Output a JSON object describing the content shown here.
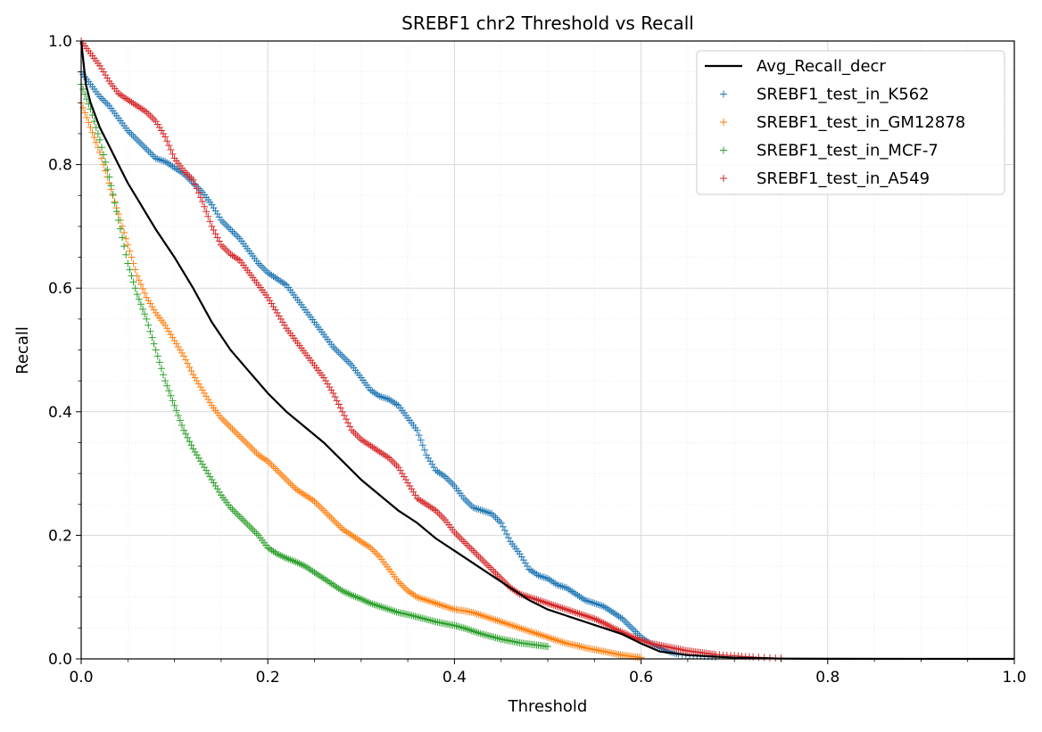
{
  "chart_data": {
    "type": "scatter",
    "title": "SREBF1 chr2 Threshold vs Recall",
    "xlabel": "Threshold",
    "ylabel": "Recall",
    "xlim": [
      0.0,
      1.0
    ],
    "ylim": [
      0.0,
      1.0
    ],
    "xticks": [
      "0.0",
      "0.2",
      "0.4",
      "0.6",
      "0.8",
      "1.0"
    ],
    "yticks": [
      "0.0",
      "0.2",
      "0.4",
      "0.6",
      "0.8",
      "1.0"
    ],
    "grid": true,
    "minor_grid": true,
    "legend_position": "top-right",
    "line": {
      "name": "Avg_Recall_decr",
      "color": "#000000",
      "points": [
        [
          0.0,
          1.0
        ],
        [
          0.005,
          0.93
        ],
        [
          0.01,
          0.9
        ],
        [
          0.02,
          0.86
        ],
        [
          0.03,
          0.83
        ],
        [
          0.04,
          0.8
        ],
        [
          0.05,
          0.77
        ],
        [
          0.06,
          0.745
        ],
        [
          0.07,
          0.72
        ],
        [
          0.08,
          0.695
        ],
        [
          0.1,
          0.65
        ],
        [
          0.12,
          0.6
        ],
        [
          0.14,
          0.545
        ],
        [
          0.16,
          0.5
        ],
        [
          0.18,
          0.465
        ],
        [
          0.2,
          0.43
        ],
        [
          0.22,
          0.4
        ],
        [
          0.24,
          0.375
        ],
        [
          0.26,
          0.35
        ],
        [
          0.28,
          0.32
        ],
        [
          0.3,
          0.29
        ],
        [
          0.32,
          0.265
        ],
        [
          0.34,
          0.24
        ],
        [
          0.36,
          0.22
        ],
        [
          0.38,
          0.195
        ],
        [
          0.4,
          0.175
        ],
        [
          0.42,
          0.155
        ],
        [
          0.44,
          0.135
        ],
        [
          0.46,
          0.115
        ],
        [
          0.48,
          0.095
        ],
        [
          0.5,
          0.08
        ],
        [
          0.52,
          0.07
        ],
        [
          0.54,
          0.06
        ],
        [
          0.56,
          0.05
        ],
        [
          0.58,
          0.04
        ],
        [
          0.6,
          0.025
        ],
        [
          0.62,
          0.012
        ],
        [
          0.65,
          0.006
        ],
        [
          0.7,
          0.002
        ],
        [
          0.75,
          0.0005
        ],
        [
          0.8,
          0.0002
        ],
        [
          1.0,
          0.0
        ]
      ]
    },
    "series": [
      {
        "name": "SREBF1_test_in_K562",
        "color": "#1f77b4",
        "points": [
          [
            0.0,
            0.95
          ],
          [
            0.01,
            0.93
          ],
          [
            0.02,
            0.91
          ],
          [
            0.03,
            0.895
          ],
          [
            0.04,
            0.875
          ],
          [
            0.05,
            0.855
          ],
          [
            0.06,
            0.84
          ],
          [
            0.07,
            0.825
          ],
          [
            0.08,
            0.81
          ],
          [
            0.09,
            0.805
          ],
          [
            0.1,
            0.795
          ],
          [
            0.11,
            0.785
          ],
          [
            0.12,
            0.77
          ],
          [
            0.13,
            0.755
          ],
          [
            0.14,
            0.735
          ],
          [
            0.15,
            0.71
          ],
          [
            0.16,
            0.695
          ],
          [
            0.17,
            0.68
          ],
          [
            0.18,
            0.66
          ],
          [
            0.19,
            0.64
          ],
          [
            0.2,
            0.625
          ],
          [
            0.21,
            0.615
          ],
          [
            0.22,
            0.605
          ],
          [
            0.23,
            0.585
          ],
          [
            0.24,
            0.565
          ],
          [
            0.25,
            0.545
          ],
          [
            0.26,
            0.525
          ],
          [
            0.27,
            0.505
          ],
          [
            0.28,
            0.49
          ],
          [
            0.29,
            0.475
          ],
          [
            0.3,
            0.455
          ],
          [
            0.31,
            0.435
          ],
          [
            0.32,
            0.425
          ],
          [
            0.33,
            0.42
          ],
          [
            0.34,
            0.41
          ],
          [
            0.35,
            0.39
          ],
          [
            0.36,
            0.37
          ],
          [
            0.37,
            0.33
          ],
          [
            0.38,
            0.305
          ],
          [
            0.39,
            0.295
          ],
          [
            0.4,
            0.28
          ],
          [
            0.41,
            0.26
          ],
          [
            0.42,
            0.245
          ],
          [
            0.43,
            0.24
          ],
          [
            0.44,
            0.235
          ],
          [
            0.45,
            0.22
          ],
          [
            0.46,
            0.19
          ],
          [
            0.47,
            0.17
          ],
          [
            0.48,
            0.145
          ],
          [
            0.49,
            0.135
          ],
          [
            0.5,
            0.13
          ],
          [
            0.51,
            0.12
          ],
          [
            0.52,
            0.115
          ],
          [
            0.53,
            0.105
          ],
          [
            0.54,
            0.095
          ],
          [
            0.55,
            0.09
          ],
          [
            0.56,
            0.085
          ],
          [
            0.57,
            0.075
          ],
          [
            0.58,
            0.065
          ],
          [
            0.59,
            0.05
          ],
          [
            0.6,
            0.035
          ],
          [
            0.61,
            0.025
          ],
          [
            0.62,
            0.018
          ],
          [
            0.63,
            0.012
          ],
          [
            0.64,
            0.008
          ],
          [
            0.66,
            0.005
          ],
          [
            0.68,
            0.003
          ]
        ]
      },
      {
        "name": "SREBF1_test_in_GM12878",
        "color": "#ff7f0e",
        "points": [
          [
            0.0,
            0.9
          ],
          [
            0.01,
            0.86
          ],
          [
            0.02,
            0.82
          ],
          [
            0.03,
            0.77
          ],
          [
            0.04,
            0.72
          ],
          [
            0.05,
            0.67
          ],
          [
            0.06,
            0.62
          ],
          [
            0.07,
            0.585
          ],
          [
            0.08,
            0.56
          ],
          [
            0.09,
            0.54
          ],
          [
            0.1,
            0.515
          ],
          [
            0.11,
            0.49
          ],
          [
            0.12,
            0.46
          ],
          [
            0.13,
            0.435
          ],
          [
            0.14,
            0.41
          ],
          [
            0.15,
            0.39
          ],
          [
            0.16,
            0.375
          ],
          [
            0.17,
            0.36
          ],
          [
            0.18,
            0.345
          ],
          [
            0.19,
            0.33
          ],
          [
            0.2,
            0.32
          ],
          [
            0.21,
            0.305
          ],
          [
            0.22,
            0.29
          ],
          [
            0.23,
            0.275
          ],
          [
            0.24,
            0.265
          ],
          [
            0.25,
            0.255
          ],
          [
            0.26,
            0.24
          ],
          [
            0.27,
            0.225
          ],
          [
            0.28,
            0.21
          ],
          [
            0.29,
            0.2
          ],
          [
            0.3,
            0.19
          ],
          [
            0.31,
            0.18
          ],
          [
            0.32,
            0.165
          ],
          [
            0.33,
            0.145
          ],
          [
            0.34,
            0.125
          ],
          [
            0.35,
            0.11
          ],
          [
            0.36,
            0.1
          ],
          [
            0.37,
            0.095
          ],
          [
            0.38,
            0.09
          ],
          [
            0.39,
            0.085
          ],
          [
            0.4,
            0.08
          ],
          [
            0.41,
            0.078
          ],
          [
            0.42,
            0.075
          ],
          [
            0.43,
            0.07
          ],
          [
            0.44,
            0.065
          ],
          [
            0.45,
            0.06
          ],
          [
            0.46,
            0.055
          ],
          [
            0.47,
            0.05
          ],
          [
            0.48,
            0.045
          ],
          [
            0.49,
            0.04
          ],
          [
            0.5,
            0.035
          ],
          [
            0.51,
            0.03
          ],
          [
            0.52,
            0.025
          ],
          [
            0.53,
            0.022
          ],
          [
            0.54,
            0.018
          ],
          [
            0.55,
            0.015
          ],
          [
            0.56,
            0.012
          ],
          [
            0.57,
            0.009
          ],
          [
            0.58,
            0.006
          ],
          [
            0.59,
            0.004
          ],
          [
            0.6,
            0.002
          ]
        ]
      },
      {
        "name": "SREBF1_test_in_MCF-7",
        "color": "#2ca02c",
        "points": [
          [
            0.0,
            0.93
          ],
          [
            0.01,
            0.89
          ],
          [
            0.02,
            0.84
          ],
          [
            0.03,
            0.78
          ],
          [
            0.04,
            0.71
          ],
          [
            0.05,
            0.64
          ],
          [
            0.06,
            0.59
          ],
          [
            0.07,
            0.55
          ],
          [
            0.08,
            0.5
          ],
          [
            0.09,
            0.45
          ],
          [
            0.1,
            0.41
          ],
          [
            0.11,
            0.37
          ],
          [
            0.12,
            0.34
          ],
          [
            0.13,
            0.315
          ],
          [
            0.14,
            0.29
          ],
          [
            0.15,
            0.265
          ],
          [
            0.16,
            0.245
          ],
          [
            0.17,
            0.23
          ],
          [
            0.18,
            0.215
          ],
          [
            0.19,
            0.2
          ],
          [
            0.2,
            0.18
          ],
          [
            0.21,
            0.17
          ],
          [
            0.22,
            0.163
          ],
          [
            0.23,
            0.157
          ],
          [
            0.24,
            0.15
          ],
          [
            0.25,
            0.14
          ],
          [
            0.26,
            0.13
          ],
          [
            0.27,
            0.12
          ],
          [
            0.28,
            0.11
          ],
          [
            0.29,
            0.103
          ],
          [
            0.3,
            0.097
          ],
          [
            0.31,
            0.09
          ],
          [
            0.32,
            0.085
          ],
          [
            0.33,
            0.08
          ],
          [
            0.34,
            0.075
          ],
          [
            0.35,
            0.072
          ],
          [
            0.36,
            0.068
          ],
          [
            0.37,
            0.064
          ],
          [
            0.38,
            0.06
          ],
          [
            0.39,
            0.057
          ],
          [
            0.4,
            0.054
          ],
          [
            0.41,
            0.05
          ],
          [
            0.42,
            0.045
          ],
          [
            0.43,
            0.04
          ],
          [
            0.44,
            0.036
          ],
          [
            0.45,
            0.032
          ],
          [
            0.46,
            0.029
          ],
          [
            0.47,
            0.026
          ],
          [
            0.48,
            0.024
          ],
          [
            0.49,
            0.022
          ],
          [
            0.5,
            0.02
          ]
        ]
      },
      {
        "name": "SREBF1_test_in_A549",
        "color": "#d62728",
        "points": [
          [
            0.0,
            1.0
          ],
          [
            0.01,
            0.98
          ],
          [
            0.02,
            0.96
          ],
          [
            0.03,
            0.935
          ],
          [
            0.04,
            0.915
          ],
          [
            0.05,
            0.905
          ],
          [
            0.06,
            0.895
          ],
          [
            0.07,
            0.885
          ],
          [
            0.08,
            0.87
          ],
          [
            0.09,
            0.845
          ],
          [
            0.1,
            0.81
          ],
          [
            0.11,
            0.79
          ],
          [
            0.12,
            0.775
          ],
          [
            0.13,
            0.74
          ],
          [
            0.14,
            0.7
          ],
          [
            0.15,
            0.67
          ],
          [
            0.16,
            0.655
          ],
          [
            0.17,
            0.645
          ],
          [
            0.18,
            0.625
          ],
          [
            0.19,
            0.605
          ],
          [
            0.2,
            0.585
          ],
          [
            0.21,
            0.56
          ],
          [
            0.22,
            0.535
          ],
          [
            0.23,
            0.515
          ],
          [
            0.24,
            0.495
          ],
          [
            0.25,
            0.475
          ],
          [
            0.26,
            0.455
          ],
          [
            0.27,
            0.43
          ],
          [
            0.28,
            0.4
          ],
          [
            0.29,
            0.37
          ],
          [
            0.3,
            0.355
          ],
          [
            0.31,
            0.345
          ],
          [
            0.32,
            0.335
          ],
          [
            0.33,
            0.325
          ],
          [
            0.34,
            0.31
          ],
          [
            0.35,
            0.285
          ],
          [
            0.36,
            0.26
          ],
          [
            0.37,
            0.25
          ],
          [
            0.38,
            0.24
          ],
          [
            0.39,
            0.225
          ],
          [
            0.4,
            0.205
          ],
          [
            0.41,
            0.19
          ],
          [
            0.42,
            0.175
          ],
          [
            0.43,
            0.16
          ],
          [
            0.44,
            0.145
          ],
          [
            0.45,
            0.13
          ],
          [
            0.46,
            0.115
          ],
          [
            0.47,
            0.105
          ],
          [
            0.48,
            0.1
          ],
          [
            0.49,
            0.095
          ],
          [
            0.5,
            0.09
          ],
          [
            0.51,
            0.085
          ],
          [
            0.52,
            0.08
          ],
          [
            0.53,
            0.075
          ],
          [
            0.54,
            0.07
          ],
          [
            0.55,
            0.065
          ],
          [
            0.56,
            0.058
          ],
          [
            0.57,
            0.05
          ],
          [
            0.58,
            0.043
          ],
          [
            0.59,
            0.036
          ],
          [
            0.6,
            0.03
          ],
          [
            0.61,
            0.025
          ],
          [
            0.62,
            0.022
          ],
          [
            0.63,
            0.019
          ],
          [
            0.64,
            0.016
          ],
          [
            0.65,
            0.013
          ],
          [
            0.66,
            0.011
          ],
          [
            0.67,
            0.009
          ],
          [
            0.68,
            0.007
          ],
          [
            0.7,
            0.005
          ],
          [
            0.72,
            0.003
          ],
          [
            0.75,
            0.001
          ]
        ]
      }
    ]
  }
}
